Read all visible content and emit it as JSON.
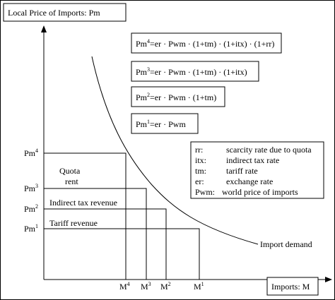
{
  "title": "Local Price of Imports: Pm",
  "x_axis_label": "Imports: M",
  "curve_label": "Import demand",
  "formulas": [
    {
      "base": "Pm",
      "sup": "4",
      "rhs": "=er · Pwm · (1+tm) · (1+itx) · (1+rr)"
    },
    {
      "base": "Pm",
      "sup": "3",
      "rhs": "=er · Pwm · (1+tm) · (1+itx)"
    },
    {
      "base": "Pm",
      "sup": "2",
      "rhs": "=er · Pwm · (1+tm)"
    },
    {
      "base": "Pm",
      "sup": "1",
      "rhs": "=er · Pwm"
    }
  ],
  "price_levels": [
    {
      "base": "Pm",
      "sup": "4"
    },
    {
      "base": "Pm",
      "sup": "3"
    },
    {
      "base": "Pm",
      "sup": "2"
    },
    {
      "base": "Pm",
      "sup": "1"
    }
  ],
  "quantity_levels": [
    {
      "base": "M",
      "sup": "4"
    },
    {
      "base": "M",
      "sup": "3"
    },
    {
      "base": "M",
      "sup": "2"
    },
    {
      "base": "M",
      "sup": "1"
    }
  ],
  "areas": {
    "quota_rent": [
      "Quota",
      "rent"
    ],
    "indirect_tax": "Indirect tax revenue",
    "tariff": "Tariff revenue"
  },
  "legend": [
    {
      "key": "rr:",
      "text": "scarcity rate due to quota"
    },
    {
      "key": "itx:",
      "text": "indirect tax rate"
    },
    {
      "key": "tm:",
      "text": "tariff rate"
    },
    {
      "key": "er:",
      "text": "exchange rate"
    },
    {
      "key": "Pwm:",
      "text": "world price of imports"
    }
  ]
}
